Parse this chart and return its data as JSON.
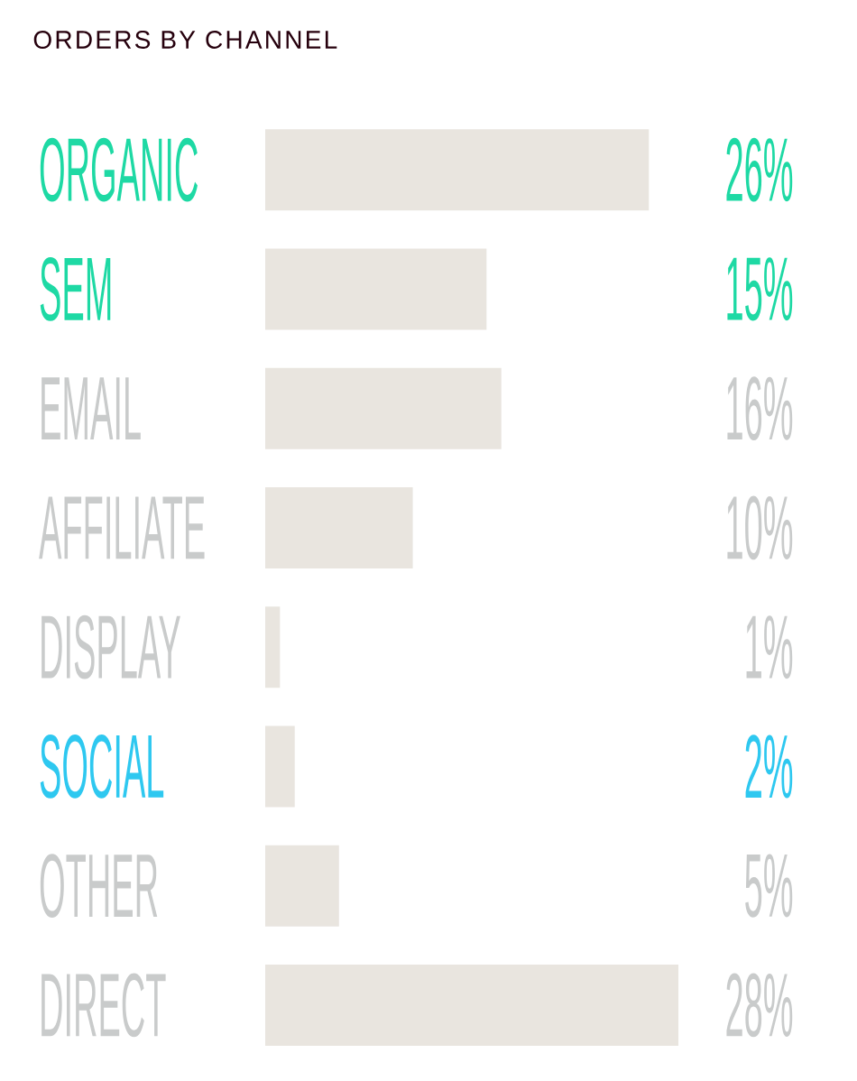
{
  "chart_data": {
    "type": "bar",
    "orientation": "horizontal",
    "title": "ORDERS BY CHANNEL",
    "categories": [
      "ORGANIC",
      "SEM",
      "EMAIL",
      "AFFILIATE",
      "DISPLAY",
      "SOCIAL",
      "OTHER",
      "DIRECT"
    ],
    "values": [
      26,
      15,
      16,
      10,
      1,
      2,
      5,
      28
    ],
    "value_labels": [
      "26%",
      "15%",
      "16%",
      "10%",
      "1%",
      "2%",
      "5%",
      "28%"
    ],
    "color": "#e9e5df"
  }
}
